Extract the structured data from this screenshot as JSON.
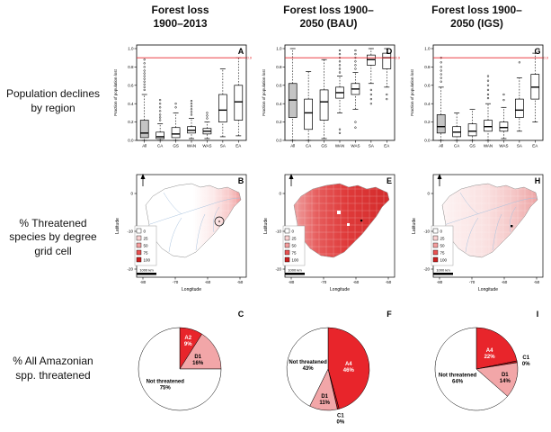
{
  "figure": {
    "col_headers": [
      "Forest loss\n1900–2013",
      "Forest loss 1900–\n2050 (BAU)",
      "Forest loss 1900–\n2050 (IGS)"
    ],
    "row_labels": [
      "Population declines by region",
      "% Threatened species by degree grid cell",
      "% All Amazonian spp. threatened"
    ],
    "accent_red": "#e8252b"
  },
  "chart_data": [
    {
      "type": "boxplot",
      "panel": "A",
      "title": "Forest loss 1900–2013",
      "ylabel": "Fraction of population lost",
      "ylim": [
        0,
        1
      ],
      "y_ticks": [
        0,
        0.2,
        0.4,
        0.6,
        0.8,
        1.0
      ],
      "red_line": 0.9,
      "red_line_label": "0.9",
      "red_color": "#e8252b",
      "categories": [
        "All",
        "CA",
        "GS",
        "WAN",
        "WAS",
        "SA",
        "EA"
      ],
      "boxes": [
        {
          "lo": 0.0,
          "q1": 0.03,
          "med": 0.08,
          "q3": 0.22,
          "hi": 0.5,
          "outliers": [
            0.55,
            0.58,
            0.61,
            0.64,
            0.67,
            0.7,
            0.73,
            0.76,
            0.8,
            0.84,
            0.88
          ],
          "fill": "#c4c4c4"
        },
        {
          "lo": 0.0,
          "q1": 0.02,
          "med": 0.04,
          "q3": 0.09,
          "hi": 0.18,
          "outliers": [
            0.22,
            0.25,
            0.28,
            0.32,
            0.36,
            0.4,
            0.44
          ],
          "fill": "#ffffff"
        },
        {
          "lo": 0.0,
          "q1": 0.03,
          "med": 0.07,
          "q3": 0.14,
          "hi": 0.3,
          "outliers": [
            0.36,
            0.4
          ],
          "fill": "#ffffff"
        },
        {
          "lo": 0.02,
          "q1": 0.08,
          "med": 0.11,
          "q3": 0.15,
          "hi": 0.24,
          "outliers": [
            0.28,
            0.31,
            0.34,
            0.37,
            0.4,
            0.43
          ],
          "fill": "#ffffff"
        },
        {
          "lo": 0.02,
          "q1": 0.07,
          "med": 0.1,
          "q3": 0.13,
          "hi": 0.2,
          "outliers": [
            0.24,
            0.27,
            0.3
          ],
          "fill": "#ffffff"
        },
        {
          "lo": 0.04,
          "q1": 0.2,
          "med": 0.33,
          "q3": 0.5,
          "hi": 0.78,
          "outliers": [],
          "fill": "#ffffff"
        },
        {
          "lo": 0.05,
          "q1": 0.22,
          "med": 0.42,
          "q3": 0.6,
          "hi": 0.9,
          "outliers": [],
          "fill": "#ffffff"
        }
      ]
    },
    {
      "type": "boxplot",
      "panel": "D",
      "title": "Forest loss 1900–2050 (BAU)",
      "ylabel": "Fraction of population lost",
      "ylim": [
        0,
        1
      ],
      "y_ticks": [
        0,
        0.2,
        0.4,
        0.6,
        0.8,
        1.0
      ],
      "red_line": 0.9,
      "red_line_label": "0.9",
      "red_color": "#e8252b",
      "categories": [
        "All",
        "CA",
        "GS",
        "WAN",
        "WAS",
        "SA",
        "EA"
      ],
      "boxes": [
        {
          "lo": 0.0,
          "q1": 0.25,
          "med": 0.44,
          "q3": 0.62,
          "hi": 1.0,
          "outliers": [],
          "fill": "#c4c4c4"
        },
        {
          "lo": 0.0,
          "q1": 0.12,
          "med": 0.3,
          "q3": 0.45,
          "hi": 0.75,
          "outliers": [],
          "fill": "#ffffff"
        },
        {
          "lo": 0.02,
          "q1": 0.22,
          "med": 0.42,
          "q3": 0.55,
          "hi": 0.88,
          "outliers": [],
          "fill": "#ffffff"
        },
        {
          "lo": 0.3,
          "q1": 0.46,
          "med": 0.52,
          "q3": 0.58,
          "hi": 0.7,
          "outliers": [
            0.74,
            0.78,
            0.82,
            0.86,
            0.9,
            0.94,
            0.98,
            0.12,
            0.08
          ],
          "fill": "#ffffff"
        },
        {
          "lo": 0.34,
          "q1": 0.5,
          "med": 0.56,
          "q3": 0.62,
          "hi": 0.74,
          "outliers": [
            0.78,
            0.82,
            0.86,
            0.9,
            0.94,
            0.98,
            0.2,
            0.14
          ],
          "fill": "#ffffff"
        },
        {
          "lo": 0.62,
          "q1": 0.82,
          "med": 0.88,
          "q3": 0.93,
          "hi": 1.0,
          "outliers": [
            0.55,
            0.5,
            0.45,
            0.4
          ],
          "fill": "#ffffff"
        },
        {
          "lo": 0.58,
          "q1": 0.78,
          "med": 0.9,
          "q3": 0.95,
          "hi": 1.0,
          "outliers": [
            0.5,
            0.45
          ],
          "fill": "#ffffff"
        }
      ]
    },
    {
      "type": "boxplot",
      "panel": "G",
      "title": "Forest loss 1900–2050 (IGS)",
      "ylabel": "Fraction of population lost",
      "ylim": [
        0,
        1
      ],
      "y_ticks": [
        0,
        0.2,
        0.4,
        0.6,
        0.8,
        1.0
      ],
      "red_line": 0.9,
      "red_line_label": "0.9",
      "red_color": "#e8252b",
      "categories": [
        "All",
        "CA",
        "GS",
        "WAN",
        "WAS",
        "SA",
        "EA"
      ],
      "boxes": [
        {
          "lo": 0.0,
          "q1": 0.08,
          "med": 0.15,
          "q3": 0.28,
          "hi": 0.58,
          "outliers": [
            0.64,
            0.68,
            0.72,
            0.76,
            0.8,
            0.85,
            0.9
          ],
          "fill": "#c4c4c4"
        },
        {
          "lo": 0.0,
          "q1": 0.04,
          "med": 0.09,
          "q3": 0.15,
          "hi": 0.3,
          "outliers": [],
          "fill": "#ffffff"
        },
        {
          "lo": 0.0,
          "q1": 0.05,
          "med": 0.1,
          "q3": 0.18,
          "hi": 0.34,
          "outliers": [],
          "fill": "#ffffff"
        },
        {
          "lo": 0.0,
          "q1": 0.1,
          "med": 0.15,
          "q3": 0.22,
          "hi": 0.4,
          "outliers": [
            0.46,
            0.5,
            0.55,
            0.6,
            0.65,
            0.7
          ],
          "fill": "#ffffff"
        },
        {
          "lo": 0.02,
          "q1": 0.1,
          "med": 0.14,
          "q3": 0.2,
          "hi": 0.36,
          "outliers": [
            0.44,
            0.5
          ],
          "fill": "#ffffff"
        },
        {
          "lo": 0.1,
          "q1": 0.25,
          "med": 0.33,
          "q3": 0.45,
          "hi": 0.68,
          "outliers": [
            0.85
          ],
          "fill": "#ffffff"
        },
        {
          "lo": 0.2,
          "q1": 0.45,
          "med": 0.58,
          "q3": 0.72,
          "hi": 0.95,
          "outliers": [],
          "fill": "#ffffff"
        }
      ]
    },
    {
      "type": "map",
      "panel": "B",
      "xlabel": "Longitude",
      "ylabel": "Latitude",
      "x_ticks": [
        "-80",
        "-70",
        "-60",
        "-50"
      ],
      "y_ticks": [
        "0",
        "-10",
        "-20"
      ],
      "legend": {
        "values": [
          "0",
          "25",
          "50",
          "75",
          "100"
        ],
        "colors": [
          "#ffffff",
          "#fbd3d3",
          "#f59e9e",
          "#ea5252",
          "#cc1f1f"
        ]
      },
      "scale_bar": "1000 km",
      "gradient": [
        {
          "o": 0,
          "c": "#ffffff"
        },
        {
          "o": 0.5,
          "c": "#ffffff"
        },
        {
          "o": 0.72,
          "c": "#fce8e8"
        },
        {
          "o": 0.9,
          "c": "#f7c4c4"
        },
        {
          "o": 1,
          "c": "#ef9898"
        }
      ],
      "rivers": true,
      "annotation": "circle"
    },
    {
      "type": "map",
      "panel": "E",
      "xlabel": "Longitude",
      "ylabel": "Latitude",
      "x_ticks": [
        "-80",
        "-70",
        "-60",
        "-50"
      ],
      "y_ticks": [
        "0",
        "-10",
        "-20"
      ],
      "legend": {
        "values": [
          "0",
          "25",
          "50",
          "75",
          "100"
        ],
        "colors": [
          "#ffffff",
          "#fbd3d3",
          "#f59e9e",
          "#ea5252",
          "#cc1f1f"
        ]
      },
      "scale_bar": "1000 km",
      "gradient": [
        {
          "o": 0,
          "c": "#efa0a0"
        },
        {
          "o": 0.25,
          "c": "#e65c5c"
        },
        {
          "o": 0.55,
          "c": "#df3a3a"
        },
        {
          "o": 1,
          "c": "#d32b2b"
        }
      ],
      "rivers": false,
      "annotation": "squares"
    },
    {
      "type": "map",
      "panel": "H",
      "xlabel": "Longitude",
      "ylabel": "Latitude",
      "x_ticks": [
        "-80",
        "-70",
        "-60",
        "-50"
      ],
      "y_ticks": [
        "0",
        "-10",
        "-20"
      ],
      "legend": {
        "values": [
          "0",
          "25",
          "50",
          "75",
          "100"
        ],
        "colors": [
          "#ffffff",
          "#fbd3d3",
          "#f59e9e",
          "#ea5252",
          "#cc1f1f"
        ]
      },
      "scale_bar": "1000 km",
      "gradient": [
        {
          "o": 0,
          "c": "#fdf3f3"
        },
        {
          "o": 0.45,
          "c": "#fae1e1"
        },
        {
          "o": 0.75,
          "c": "#f5c6c6"
        },
        {
          "o": 1,
          "c": "#eda4a4"
        }
      ],
      "rivers": true,
      "annotation": "dot"
    },
    {
      "type": "pie",
      "panel": "C",
      "slices": [
        {
          "label": "A2",
          "pct": "9%",
          "value": 9,
          "color": "#e8252b",
          "text_color": "#ffffff"
        },
        {
          "label": "D1",
          "pct": "16%",
          "value": 16,
          "color": "#f2a6a8",
          "text_color": "#000000"
        },
        {
          "label": "Not threatened",
          "pct": "75%",
          "value": 75,
          "color": "#ffffff",
          "text_color": "#000000"
        }
      ]
    },
    {
      "type": "pie",
      "panel": "F",
      "slices": [
        {
          "label": "A4",
          "pct": "46%",
          "value": 46,
          "color": "#e8252b",
          "text_color": "#ffffff"
        },
        {
          "label": "C1",
          "pct": "0%",
          "value": 0,
          "color": "#b01218",
          "text_color": "#000000"
        },
        {
          "label": "D1",
          "pct": "11%",
          "value": 11,
          "color": "#f2a6a8",
          "text_color": "#000000"
        },
        {
          "label": "Not threatened",
          "pct": "43%",
          "value": 43,
          "color": "#ffffff",
          "text_color": "#000000"
        }
      ]
    },
    {
      "type": "pie",
      "panel": "I",
      "slices": [
        {
          "label": "A4",
          "pct": "22%",
          "value": 22,
          "color": "#e8252b",
          "text_color": "#ffffff"
        },
        {
          "label": "C1",
          "pct": "0%",
          "value": 0,
          "color": "#b01218",
          "text_color": "#000000"
        },
        {
          "label": "D1",
          "pct": "14%",
          "value": 14,
          "color": "#f2a6a8",
          "text_color": "#000000"
        },
        {
          "label": "Not threatened",
          "pct": "64%",
          "value": 64,
          "color": "#ffffff",
          "text_color": "#000000"
        }
      ]
    }
  ]
}
